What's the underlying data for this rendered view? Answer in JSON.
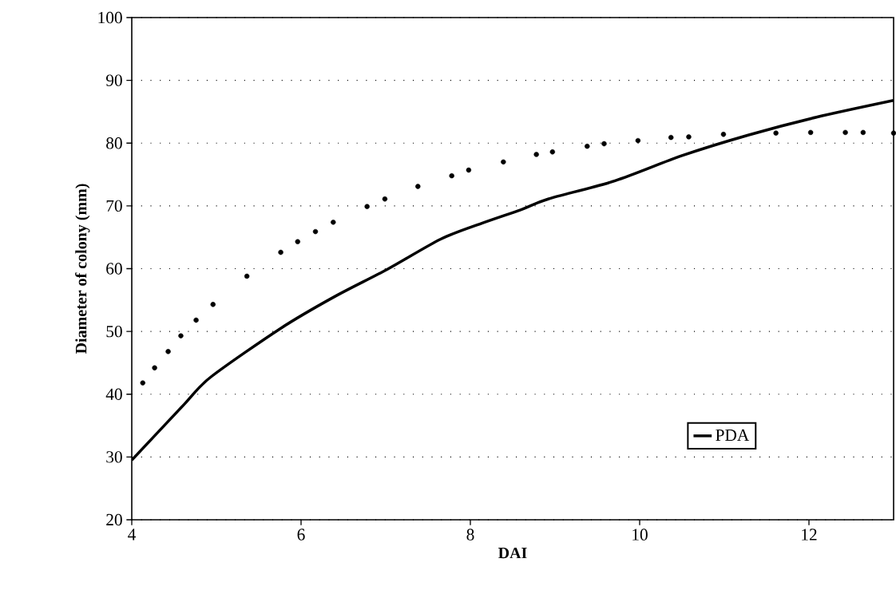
{
  "chart_data": {
    "type": "line",
    "xlabel": "DAI",
    "ylabel": "Diameter of colony (mm)",
    "xlim": [
      4,
      13
    ],
    "xticks": [
      4,
      6,
      8,
      10,
      12
    ],
    "ylim": [
      20,
      100
    ],
    "yticks": [
      20,
      30,
      40,
      50,
      60,
      70,
      80,
      90,
      100
    ],
    "grid": "y",
    "legend": "bottom right",
    "series": [
      {
        "name": "PDA",
        "color": "#000000",
        "line_style": "solid",
        "marker": "none",
        "x": [
          4,
          4.62,
          4.93,
          5.76,
          6.39,
          7.02,
          7.65,
          8.13,
          8.6,
          8.92,
          9.71,
          10.5,
          11.29,
          12.08,
          13
        ],
        "values": [
          29.5,
          38.4,
          42.7,
          50.5,
          55.5,
          59.9,
          64.7,
          67.2,
          69.4,
          71.1,
          74.0,
          78.0,
          81.3,
          84.1,
          86.8
        ]
      },
      {
        "type": "scatter",
        "color": "#000000",
        "marker": "circle",
        "x": [
          4.13,
          4.27,
          4.43,
          4.58,
          4.76,
          4.96,
          5.36,
          5.76,
          5.96,
          6.17,
          6.38,
          6.78,
          6.99,
          7.38,
          7.78,
          7.98,
          8.39,
          8.78,
          8.97,
          9.38,
          9.58,
          9.98,
          10.37,
          10.58,
          10.99,
          11.61,
          12.02,
          12.43,
          12.64,
          13
        ],
        "values": [
          41.8,
          44.2,
          46.8,
          49.3,
          51.8,
          54.3,
          58.8,
          62.6,
          64.3,
          65.9,
          67.4,
          69.9,
          71.1,
          73.1,
          74.8,
          75.7,
          77.0,
          78.2,
          78.6,
          79.5,
          79.9,
          80.4,
          80.9,
          81.0,
          81.4,
          81.6,
          81.7,
          81.7,
          81.7,
          81.6
        ]
      }
    ]
  }
}
